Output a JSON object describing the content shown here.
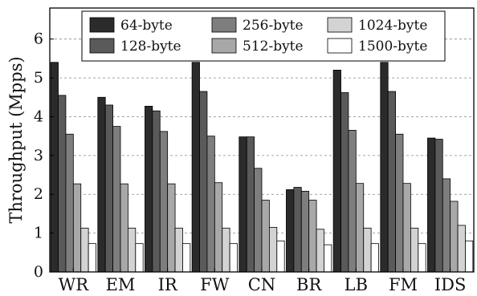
{
  "chart_data": {
    "type": "bar",
    "ylabel": "Throughput (Mpps)",
    "xlabel": "",
    "title": "",
    "ylim": [
      0,
      6.8
    ],
    "yticks": [
      0,
      1,
      2,
      3,
      4,
      5,
      6
    ],
    "grid": "horizontal",
    "legend_position": "top",
    "categories": [
      "WR",
      "EM",
      "IR",
      "FW",
      "CN",
      "BR",
      "LB",
      "FM",
      "IDS"
    ],
    "series": [
      {
        "name": "64-byte",
        "color": "#2b2b2b",
        "values": [
          5.4,
          4.5,
          4.27,
          5.4,
          3.48,
          2.12,
          5.2,
          5.4,
          3.45
        ]
      },
      {
        "name": "128-byte",
        "color": "#5a5a5a",
        "values": [
          4.55,
          4.3,
          4.15,
          4.65,
          3.48,
          2.18,
          4.62,
          4.65,
          3.42
        ]
      },
      {
        "name": "256-byte",
        "color": "#7e7e7e",
        "values": [
          3.55,
          3.75,
          3.62,
          3.5,
          2.67,
          2.08,
          3.65,
          3.55,
          2.4
        ]
      },
      {
        "name": "512-byte",
        "color": "#a8a8a8",
        "values": [
          2.27,
          2.27,
          2.27,
          2.3,
          1.85,
          1.85,
          2.28,
          2.28,
          1.82
        ]
      },
      {
        "name": "1024-byte",
        "color": "#d3d3d3",
        "values": [
          1.13,
          1.13,
          1.13,
          1.13,
          1.15,
          1.1,
          1.13,
          1.13,
          1.2
        ]
      },
      {
        "name": "1500-byte",
        "color": "#ffffff",
        "values": [
          0.73,
          0.73,
          0.73,
          0.73,
          0.8,
          0.7,
          0.73,
          0.73,
          0.8
        ]
      }
    ]
  }
}
